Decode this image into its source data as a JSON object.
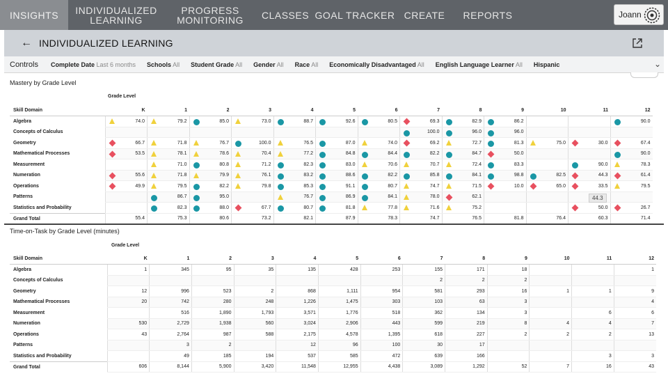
{
  "nav": {
    "items": [
      {
        "label": "INSIGHTS",
        "active": true
      },
      {
        "label": "INDIVIDUALIZED LEARNING",
        "active": false
      },
      {
        "label": "PROGRESS MONITORING",
        "active": false
      },
      {
        "label": "CLASSES",
        "active": false
      },
      {
        "label": "GOAL TRACKER",
        "active": false
      },
      {
        "label": "CREATE",
        "active": false
      },
      {
        "label": "REPORTS",
        "active": false
      }
    ],
    "user": "Joann"
  },
  "titlebar": {
    "title": "INDIVIDUALIZED LEARNING"
  },
  "controls": {
    "label": "Controls",
    "filters": [
      {
        "name": "Complete Date",
        "value": "Last 6 months"
      },
      {
        "name": "Schools",
        "value": "All"
      },
      {
        "name": "Student Grade",
        "value": "All"
      },
      {
        "name": "Gender",
        "value": "All"
      },
      {
        "name": "Race",
        "value": "All"
      },
      {
        "name": "Economically Disadvantaged",
        "value": "All"
      },
      {
        "name": "English Language Learner",
        "value": "All"
      },
      {
        "name": "Hispanic",
        "value": ""
      }
    ]
  },
  "colors": {
    "circle": "#1a97a5",
    "triangle": "#f0d13c",
    "diamond": "#e8505f"
  },
  "mastery": {
    "title": "Mastery by Grade Level",
    "grade_level_label": "Grade Level",
    "domain_header": "Skill Domain",
    "grades": [
      "K",
      "1",
      "2",
      "3",
      "4",
      "5",
      "6",
      "7",
      "8",
      "9",
      "10",
      "11",
      "12"
    ],
    "rows": [
      {
        "domain": "Algebra",
        "cells": [
          [
            "triangle",
            "74.0"
          ],
          [
            "triangle",
            "79.2"
          ],
          [
            "circle",
            "85.0"
          ],
          [
            "triangle",
            "73.0"
          ],
          [
            "circle",
            "88.7"
          ],
          [
            "circle",
            "92.6"
          ],
          [
            "circle",
            "80.5"
          ],
          [
            "diamond",
            "69.3"
          ],
          [
            "circle",
            "82.9"
          ],
          [
            "circle",
            "86.2"
          ],
          [
            "",
            ""
          ],
          [
            "",
            ""
          ],
          [
            "circle",
            "90.0"
          ]
        ]
      },
      {
        "domain": "Concepts of Calculus",
        "cells": [
          [
            "",
            ""
          ],
          [
            "",
            ""
          ],
          [
            "",
            ""
          ],
          [
            "",
            ""
          ],
          [
            "",
            ""
          ],
          [
            "",
            ""
          ],
          [
            "",
            ""
          ],
          [
            "circle",
            "100.0"
          ],
          [
            "circle",
            "96.0"
          ],
          [
            "circle",
            "96.0"
          ],
          [
            "",
            ""
          ],
          [
            "",
            ""
          ],
          [
            "",
            ""
          ]
        ]
      },
      {
        "domain": "Geometry",
        "cells": [
          [
            "diamond",
            "66.7"
          ],
          [
            "triangle",
            "71.8"
          ],
          [
            "triangle",
            "76.7"
          ],
          [
            "circle",
            "100.0"
          ],
          [
            "triangle",
            "76.5"
          ],
          [
            "circle",
            "87.0"
          ],
          [
            "triangle",
            "74.0"
          ],
          [
            "diamond",
            "69.2"
          ],
          [
            "triangle",
            "72.7"
          ],
          [
            "circle",
            "81.3"
          ],
          [
            "triangle",
            "75.0"
          ],
          [
            "diamond",
            "30.0"
          ],
          [
            "diamond",
            "67.4"
          ]
        ]
      },
      {
        "domain": "Mathematical Processes",
        "cells": [
          [
            "diamond",
            "53.5"
          ],
          [
            "triangle",
            "78.1"
          ],
          [
            "triangle",
            "78.6"
          ],
          [
            "triangle",
            "70.4"
          ],
          [
            "triangle",
            "77.2"
          ],
          [
            "circle",
            "84.8"
          ],
          [
            "circle",
            "84.4"
          ],
          [
            "circle",
            "82.2"
          ],
          [
            "circle",
            "84.7"
          ],
          [
            "diamond",
            "50.0"
          ],
          [
            "",
            ""
          ],
          [
            "",
            ""
          ],
          [
            "circle",
            "90.0"
          ]
        ]
      },
      {
        "domain": "Measurement",
        "cells": [
          [
            "",
            ""
          ],
          [
            "triangle",
            "71.0"
          ],
          [
            "circle",
            "80.8"
          ],
          [
            "triangle",
            "71.2"
          ],
          [
            "circle",
            "82.3"
          ],
          [
            "circle",
            "83.0"
          ],
          [
            "triangle",
            "70.6"
          ],
          [
            "triangle",
            "70.7"
          ],
          [
            "triangle",
            "72.4"
          ],
          [
            "circle",
            "83.3"
          ],
          [
            "",
            ""
          ],
          [
            "circle",
            "90.0"
          ],
          [
            "triangle",
            "78.3"
          ]
        ]
      },
      {
        "domain": "Numeration",
        "cells": [
          [
            "diamond",
            "55.6"
          ],
          [
            "triangle",
            "71.8"
          ],
          [
            "triangle",
            "79.9"
          ],
          [
            "triangle",
            "76.1"
          ],
          [
            "circle",
            "83.2"
          ],
          [
            "circle",
            "88.6"
          ],
          [
            "circle",
            "82.2"
          ],
          [
            "circle",
            "85.8"
          ],
          [
            "circle",
            "84.1"
          ],
          [
            "circle",
            "98.8"
          ],
          [
            "circle",
            "82.5"
          ],
          [
            "diamond",
            "44.3"
          ],
          [
            "diamond",
            "61.4"
          ]
        ]
      },
      {
        "domain": "Operations",
        "cells": [
          [
            "diamond",
            "49.9"
          ],
          [
            "triangle",
            "79.5"
          ],
          [
            "circle",
            "82.2"
          ],
          [
            "triangle",
            "79.8"
          ],
          [
            "circle",
            "85.3"
          ],
          [
            "circle",
            "91.1"
          ],
          [
            "circle",
            "80.7"
          ],
          [
            "triangle",
            "74.7"
          ],
          [
            "triangle",
            "71.5"
          ],
          [
            "diamond",
            "10.0"
          ],
          [
            "diamond",
            "65.0"
          ],
          [
            "diamond",
            "33.5"
          ],
          [
            "triangle",
            "79.5"
          ]
        ]
      },
      {
        "domain": "Patterns",
        "cells": [
          [
            "",
            ""
          ],
          [
            "circle",
            "86.7"
          ],
          [
            "circle",
            "95.0"
          ],
          [
            "",
            ""
          ],
          [
            "triangle",
            "76.7"
          ],
          [
            "circle",
            "86.9"
          ],
          [
            "circle",
            "84.1"
          ],
          [
            "triangle",
            "78.0"
          ],
          [
            "diamond",
            "62.1"
          ],
          [
            "",
            ""
          ],
          [
            "",
            ""
          ],
          [
            "",
            ""
          ],
          [
            "",
            ""
          ]
        ]
      },
      {
        "domain": "Statistics and Probability",
        "cells": [
          [
            "",
            ""
          ],
          [
            "circle",
            "82.3"
          ],
          [
            "circle",
            "88.0"
          ],
          [
            "diamond",
            "67.7"
          ],
          [
            "circle",
            "80.7"
          ],
          [
            "circle",
            "81.8"
          ],
          [
            "triangle",
            "77.8"
          ],
          [
            "triangle",
            "71.6"
          ],
          [
            "triangle",
            "75.2"
          ],
          [
            "",
            ""
          ],
          [
            "",
            ""
          ],
          [
            "diamond",
            "50.0"
          ],
          [
            "diamond",
            "26.7"
          ]
        ]
      }
    ],
    "total_label": "Grand Total",
    "totals": [
      "55.4",
      "75.3",
      "80.6",
      "73.2",
      "82.1",
      "87.9",
      "78.3",
      "74.7",
      "76.5",
      "81.8",
      "76.4",
      "60.3",
      "71.4"
    ],
    "tooltip": "44.3"
  },
  "time_on_task": {
    "title": "Time-on-Task by Grade Level (minutes)",
    "grade_level_label": "Grade Level",
    "domain_header": "Skill Domain",
    "grades": [
      "K",
      "1",
      "2",
      "3",
      "4",
      "5",
      "6",
      "7",
      "8",
      "9",
      "10",
      "11",
      "12"
    ],
    "rows": [
      {
        "domain": "Algebra",
        "cells": [
          "1",
          "345",
          "95",
          "35",
          "135",
          "428",
          "253",
          "155",
          "171",
          "18",
          "",
          "",
          "1"
        ]
      },
      {
        "domain": "Concepts of Calculus",
        "cells": [
          "",
          "",
          "",
          "",
          "",
          "",
          "",
          "2",
          "2",
          "2",
          "",
          "",
          ""
        ]
      },
      {
        "domain": "Geometry",
        "cells": [
          "12",
          "996",
          "523",
          "2",
          "868",
          "1,111",
          "954",
          "581",
          "293",
          "16",
          "1",
          "1",
          "9"
        ]
      },
      {
        "domain": "Mathematical Processes",
        "cells": [
          "20",
          "742",
          "280",
          "248",
          "1,226",
          "1,475",
          "303",
          "103",
          "63",
          "3",
          "",
          "",
          "4"
        ]
      },
      {
        "domain": "Measurement",
        "cells": [
          "",
          "516",
          "1,890",
          "1,793",
          "3,571",
          "1,776",
          "518",
          "362",
          "134",
          "3",
          "",
          "6",
          "6"
        ]
      },
      {
        "domain": "Numeration",
        "cells": [
          "530",
          "2,729",
          "1,938",
          "560",
          "3,024",
          "2,906",
          "443",
          "599",
          "219",
          "8",
          "4",
          "4",
          "7"
        ]
      },
      {
        "domain": "Operations",
        "cells": [
          "43",
          "2,764",
          "987",
          "588",
          "2,175",
          "4,578",
          "1,395",
          "618",
          "227",
          "2",
          "2",
          "2",
          "13"
        ]
      },
      {
        "domain": "Patterns",
        "cells": [
          "",
          "3",
          "2",
          "",
          "12",
          "96",
          "100",
          "30",
          "17",
          "",
          "",
          "",
          ""
        ]
      },
      {
        "domain": "Statistics and Probability",
        "cells": [
          "",
          "49",
          "185",
          "194",
          "537",
          "585",
          "472",
          "639",
          "166",
          "",
          "",
          "3",
          "3"
        ]
      }
    ],
    "total_label": "Grand Total",
    "totals": [
      "606",
      "8,144",
      "5,900",
      "3,420",
      "11,548",
      "12,955",
      "4,438",
      "3,089",
      "1,292",
      "52",
      "7",
      "16",
      "43"
    ]
  }
}
